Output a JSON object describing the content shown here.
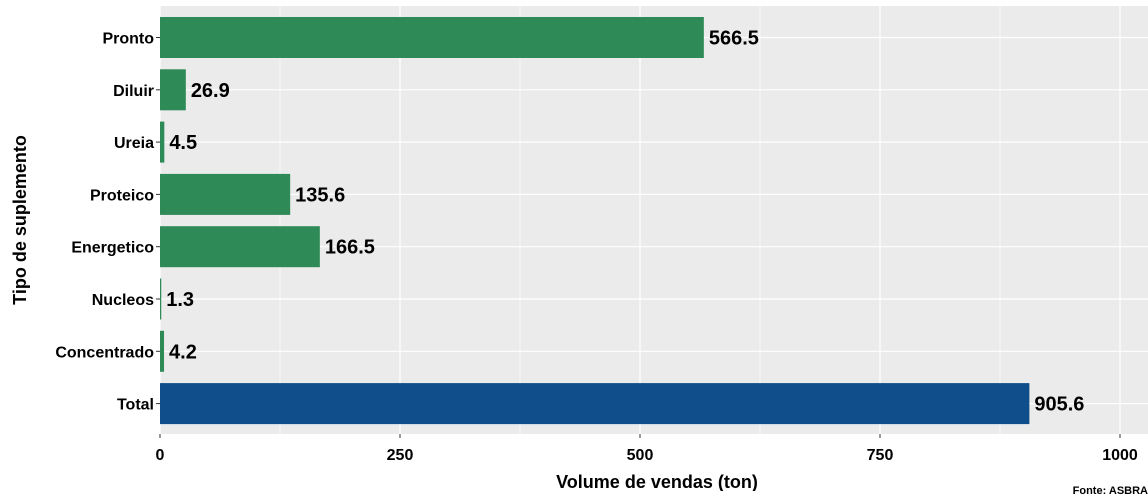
{
  "chart_data": {
    "type": "bar",
    "orientation": "horizontal",
    "categories": [
      "Pronto",
      "Diluir",
      "Ureia",
      "Proteico",
      "Energetico",
      "Nucleos",
      "Concentrado",
      "Total"
    ],
    "values": [
      566.5,
      26.9,
      4.5,
      135.6,
      166.5,
      1.3,
      4.2,
      905.6
    ],
    "data_labels": [
      "566.5",
      "26.9",
      "4.5",
      "135.6",
      "166.5",
      "1.3",
      "4.2",
      "905.6"
    ],
    "bar_colors": [
      "#2e8b57",
      "#2e8b57",
      "#2e8b57",
      "#2e8b57",
      "#2e8b57",
      "#2e8b57",
      "#2e8b57",
      "#104e8b"
    ],
    "xlabel": "Volume de vendas (ton)",
    "ylabel": "Tipo de suplemento",
    "xlim": [
      0,
      1000
    ],
    "x_ticks": [
      0,
      250,
      500,
      750,
      1000
    ],
    "grid": true,
    "panel_background": "#ebebeb",
    "caption": "Fonte: ASBRA"
  }
}
